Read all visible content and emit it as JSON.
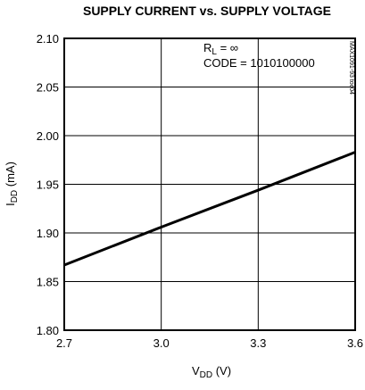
{
  "chart_data": {
    "type": "line",
    "title": "SUPPLY CURRENT vs. SUPPLY VOLTAGE",
    "xlabel": [
      "V",
      "DD",
      " (V)"
    ],
    "ylabel": [
      "I",
      "DD",
      " (mA)"
    ],
    "annotations": [
      [
        "R",
        "L",
        " = ∞"
      ],
      [
        "CODE = 1010100000"
      ]
    ],
    "side_note": "MAX1091-93 toc04",
    "x": [
      2.7,
      3.0,
      3.3,
      3.6
    ],
    "series": [
      {
        "color": "#000000",
        "values": [
          1.867,
          1.906,
          1.944,
          1.983
        ]
      }
    ],
    "xlim": [
      2.7,
      3.6
    ],
    "xticks": [
      2.7,
      {
        "value": 3,
        "label": "3.0"
      },
      3.3,
      3.6
    ],
    "ylim": [
      1.8,
      2.1
    ],
    "yticks": [
      {
        "value": 1.8,
        "label": "1.80"
      },
      1.85,
      {
        "value": 1.9,
        "label": "1.90"
      },
      1.95,
      {
        "value": 2,
        "label": "2.00"
      },
      2.05,
      {
        "value": 2.1,
        "label": "2.10"
      }
    ],
    "grid": true
  }
}
